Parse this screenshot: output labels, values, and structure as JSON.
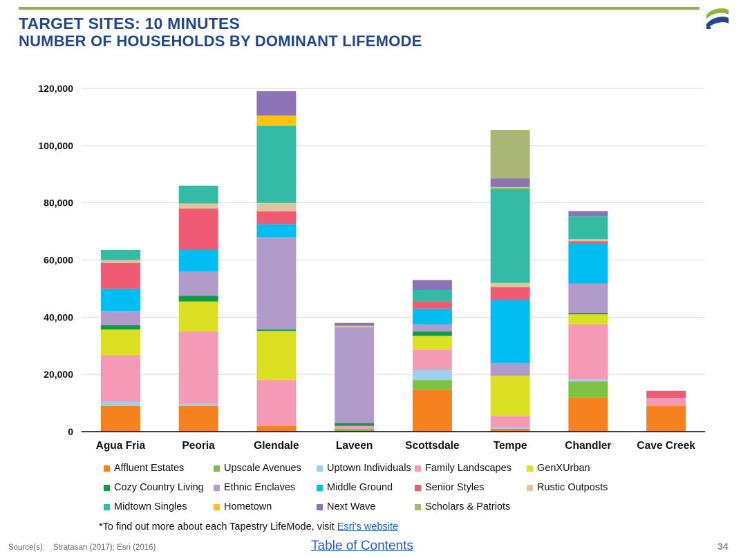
{
  "slide": {
    "title_line1": "TARGET SITES: 10 MINUTES",
    "title_line2": "NUMBER OF HOUSEHOLDS BY DOMINANT LIFEMODE",
    "footnote_text": "*To find out more about each Tapestry LifeMode, visit ",
    "footnote_link": "Esri’s website",
    "source_label": "Source(s):",
    "source_value": "Stratasan (2017); Esri (2016)",
    "toc_link": "Table of Contents",
    "page_number": "34",
    "brand_color": "#23468F",
    "accent_color": "#8DB53F"
  },
  "chart_data": {
    "type": "bar",
    "stacked": true,
    "categories": [
      "Agua Fria",
      "Peoria",
      "Glendale",
      "Laveen",
      "Scottsdale",
      "Tempe",
      "Chandler",
      "Cave Creek"
    ],
    "ylim": [
      0,
      120000
    ],
    "yticks": [
      0,
      20000,
      40000,
      60000,
      80000,
      100000,
      120000
    ],
    "ytick_labels": [
      "0",
      "20,000",
      "40,000",
      "60,000",
      "80,000",
      "100,000",
      "120,000"
    ],
    "grid": true,
    "legend_position": "bottom",
    "series": [
      {
        "name": "Affluent Estates",
        "color": "#F5821F",
        "values": [
          9000,
          9000,
          2000,
          0,
          14500,
          1000,
          12000,
          9000
        ]
      },
      {
        "name": "Upscale Avenues",
        "color": "#7DC242",
        "values": [
          0,
          0,
          0,
          1000,
          3500,
          0,
          5500,
          0
        ]
      },
      {
        "name": "Uptown Individuals",
        "color": "#9DCFEF",
        "values": [
          1500,
          700,
          0,
          0,
          3500,
          500,
          800,
          0
        ]
      },
      {
        "name": "Family Landscapes",
        "color": "#F49AB6",
        "values": [
          16200,
          25300,
          16000,
          1000,
          7000,
          4000,
          19200,
          2800
        ]
      },
      {
        "name": "GenXUrban",
        "color": "#DCE023",
        "values": [
          9000,
          10500,
          17200,
          0,
          5000,
          14000,
          3500,
          0
        ]
      },
      {
        "name": "Cozy Country Living",
        "color": "#0F9A4A",
        "values": [
          1500,
          2000,
          500,
          1000,
          1500,
          0,
          500,
          0
        ]
      },
      {
        "name": "Ethnic Enclaves",
        "color": "#B19BCB",
        "values": [
          5000,
          8500,
          32300,
          33500,
          2500,
          4500,
          10300,
          0
        ]
      },
      {
        "name": "Middle Ground",
        "color": "#00BDF2",
        "values": [
          7800,
          7500,
          4500,
          0,
          5500,
          22000,
          14000,
          0
        ]
      },
      {
        "name": "Senior Styles",
        "color": "#EF5B73",
        "values": [
          9000,
          14500,
          4500,
          0,
          2500,
          4500,
          800,
          2500
        ]
      },
      {
        "name": "Rustic Outposts",
        "color": "#DFC49F",
        "values": [
          1000,
          1800,
          3000,
          500,
          0,
          1500,
          700,
          0
        ]
      },
      {
        "name": "Midtown Singles",
        "color": "#35BAA6",
        "values": [
          3500,
          6200,
          27000,
          0,
          4000,
          33000,
          8000,
          0
        ]
      },
      {
        "name": "Hometown",
        "color": "#FFC20E",
        "values": [
          0,
          0,
          3500,
          0,
          0,
          500,
          0,
          0
        ]
      },
      {
        "name": "Next Wave",
        "color": "#8C73B6",
        "values": [
          0,
          0,
          8500,
          1000,
          3500,
          3000,
          1800,
          0
        ]
      },
      {
        "name": "Scholars & Patriots",
        "color": "#A9B674",
        "values": [
          0,
          0,
          0,
          0,
          0,
          17000,
          0,
          0
        ]
      }
    ]
  }
}
